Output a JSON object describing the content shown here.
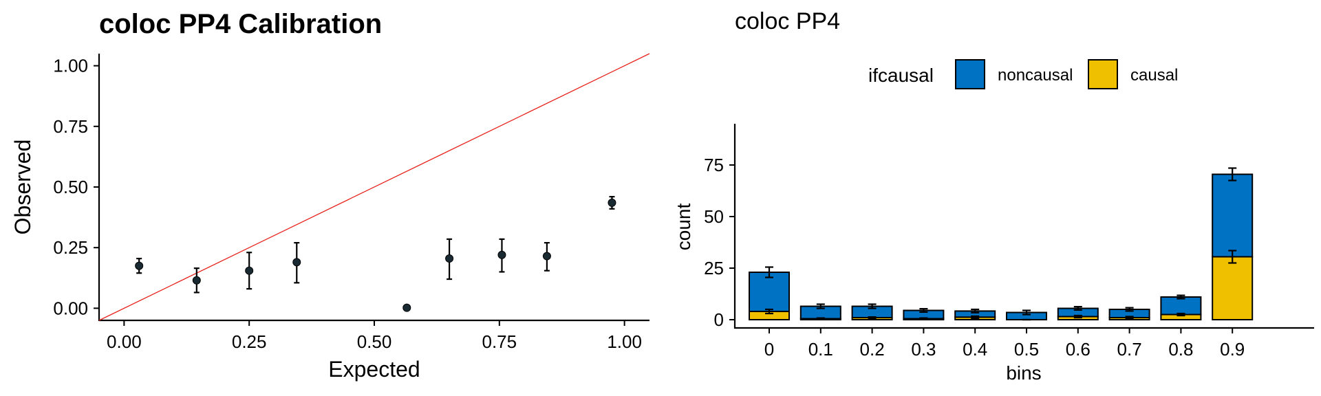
{
  "chart_data": [
    {
      "type": "scatter",
      "title": "coloc PP4 Calibration",
      "xlabel": "Expected",
      "ylabel": "Observed",
      "xlim": [
        -0.05,
        1.05
      ],
      "ylim": [
        -0.05,
        1.05
      ],
      "xticks": [
        "0.00",
        "0.25",
        "0.50",
        "0.75",
        "1.00"
      ],
      "yticks": [
        "0.00",
        "0.25",
        "0.50",
        "0.75",
        "1.00"
      ],
      "reference_line": "y = x",
      "reference_color": "#e8211c",
      "point_color": "#1a2a33",
      "points": [
        {
          "x": 0.03,
          "y": 0.175,
          "lo": 0.145,
          "hi": 0.205
        },
        {
          "x": 0.145,
          "y": 0.115,
          "lo": 0.065,
          "hi": 0.165
        },
        {
          "x": 0.25,
          "y": 0.155,
          "lo": 0.08,
          "hi": 0.23
        },
        {
          "x": 0.345,
          "y": 0.19,
          "lo": 0.105,
          "hi": 0.27
        },
        {
          "x": 0.565,
          "y": 0.002,
          "lo": 0.002,
          "hi": 0.002
        },
        {
          "x": 0.65,
          "y": 0.205,
          "lo": 0.12,
          "hi": 0.285
        },
        {
          "x": 0.755,
          "y": 0.22,
          "lo": 0.15,
          "hi": 0.285
        },
        {
          "x": 0.845,
          "y": 0.215,
          "lo": 0.155,
          "hi": 0.27
        },
        {
          "x": 0.975,
          "y": 0.435,
          "lo": 0.41,
          "hi": 0.46
        }
      ]
    },
    {
      "type": "bar",
      "stacked": true,
      "title": "coloc PP4",
      "xlabel": "bins",
      "ylabel": "count",
      "ylim": [
        -4,
        95
      ],
      "yticks": [
        0,
        25,
        50,
        75
      ],
      "legend_title": "ifcausal",
      "legend_position": "top",
      "categories": [
        "0",
        "0.1",
        "0.2",
        "0.3",
        "0.4",
        "0.5",
        "0.6",
        "0.7",
        "0.8",
        "0.9"
      ],
      "series": [
        {
          "name": "noncausal",
          "color": "#0072c3",
          "values": [
            19,
            6,
            5.5,
            4,
            3,
            3.5,
            4,
            4,
            8.5,
            40
          ],
          "err": [
            2.5,
            1,
            1,
            0.8,
            0.8,
            1,
            0.8,
            0.8,
            0.8,
            3
          ]
        },
        {
          "name": "causal",
          "color": "#efc000",
          "values": [
            4,
            0.5,
            1,
            0.5,
            1.2,
            0,
            1.5,
            1,
            2.5,
            30.5
          ],
          "err": [
            1,
            0.3,
            0.3,
            0.3,
            0.5,
            0,
            0.5,
            0.5,
            0.5,
            3
          ]
        }
      ]
    }
  ]
}
